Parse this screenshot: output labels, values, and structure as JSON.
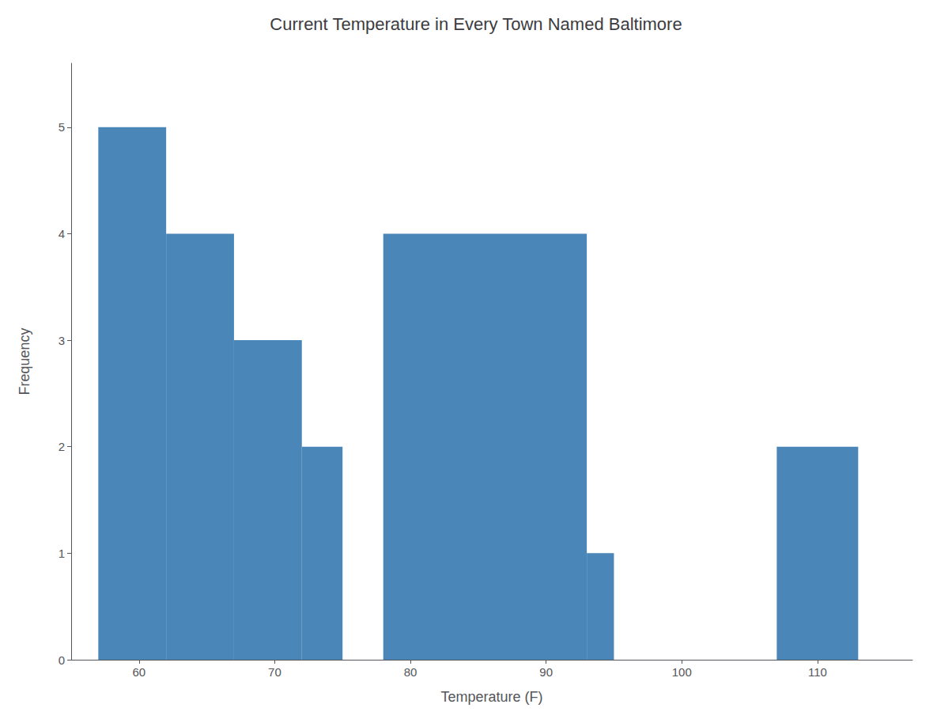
{
  "chart_data": {
    "type": "histogram",
    "title": "Current Temperature in Every Town Named Baltimore",
    "xlabel": "Temperature (F)",
    "ylabel": "Frequency",
    "bins": [
      57,
      62,
      67,
      72,
      75,
      78,
      93,
      95,
      107,
      113
    ],
    "counts": [
      5,
      4,
      3,
      2,
      0,
      4,
      1,
      0,
      2
    ],
    "color": "#4a86b8",
    "xlim": [
      55,
      117
    ],
    "ylim": [
      0,
      5.6
    ],
    "xticks": [
      60,
      70,
      80,
      90,
      100,
      110
    ],
    "yticks": [
      0,
      1,
      2,
      3,
      4,
      5
    ],
    "grid": false
  }
}
